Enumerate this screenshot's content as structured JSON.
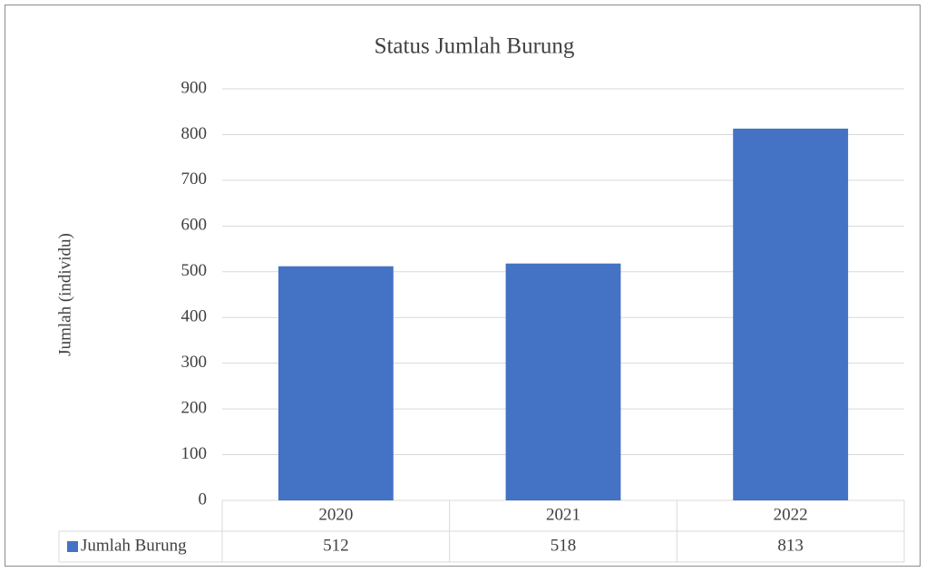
{
  "chart_data": {
    "type": "bar",
    "title": "Status Jumlah Burung",
    "y_label": "Jumlah (individu)",
    "categories": [
      "2020",
      "2021",
      "2022"
    ],
    "series": [
      {
        "name": "Jumlah Burung",
        "color": "#4472c4",
        "values": [
          512,
          518,
          813
        ]
      }
    ],
    "ylim": [
      0,
      900
    ],
    "yticks": [
      0,
      100,
      200,
      300,
      400,
      500,
      600,
      700,
      800,
      900
    ],
    "grid": true,
    "data_table": true
  }
}
